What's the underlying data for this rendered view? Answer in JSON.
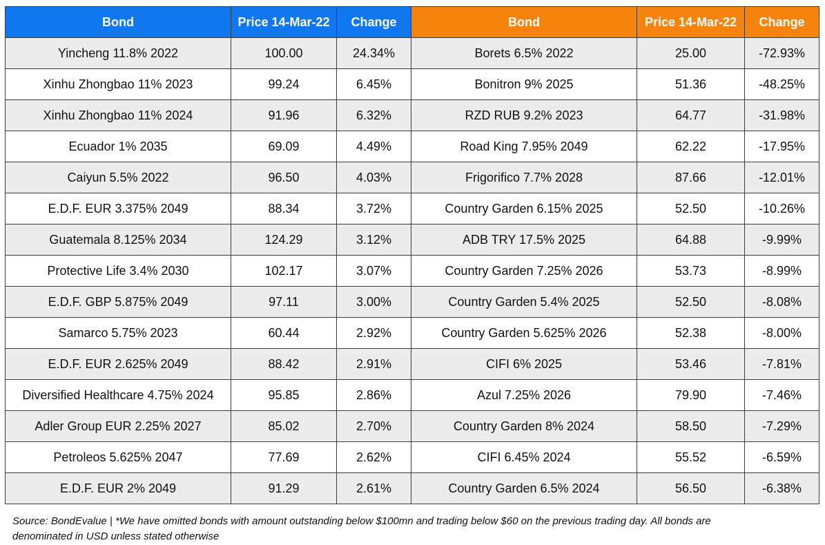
{
  "table": {
    "headers": {
      "left_bond": "Bond",
      "left_price": "Price 14-Mar-22",
      "left_change": "Change",
      "right_bond": "Bond",
      "right_price": "Price 14-Mar-22",
      "right_change": "Change"
    },
    "header_colors": {
      "left": "#1177ee",
      "right": "#f7830f"
    },
    "rows": [
      {
        "left_bond": "Yincheng 11.8% 2022",
        "left_price": "100.00",
        "left_change": "24.34%",
        "right_bond": "Borets 6.5% 2022",
        "right_price": "25.00",
        "right_change": "-72.93%"
      },
      {
        "left_bond": "Xinhu Zhongbao 11% 2023",
        "left_price": "99.24",
        "left_change": "6.45%",
        "right_bond": "Bonitron 9% 2025",
        "right_price": "51.36",
        "right_change": "-48.25%"
      },
      {
        "left_bond": "Xinhu Zhongbao 11% 2024",
        "left_price": "91.96",
        "left_change": "6.32%",
        "right_bond": "RZD RUB 9.2% 2023",
        "right_price": "64.77",
        "right_change": "-31.98%"
      },
      {
        "left_bond": "Ecuador 1% 2035",
        "left_price": "69.09",
        "left_change": "4.49%",
        "right_bond": "Road King 7.95% 2049",
        "right_price": "62.22",
        "right_change": "-17.95%"
      },
      {
        "left_bond": "Caiyun 5.5% 2022",
        "left_price": "96.50",
        "left_change": "4.03%",
        "right_bond": "Frigorifico 7.7% 2028",
        "right_price": "87.66",
        "right_change": "-12.01%"
      },
      {
        "left_bond": "E.D.F. EUR 3.375% 2049",
        "left_price": "88.34",
        "left_change": "3.72%",
        "right_bond": "Country Garden 6.15% 2025",
        "right_price": "52.50",
        "right_change": "-10.26%"
      },
      {
        "left_bond": "Guatemala 8.125% 2034",
        "left_price": "124.29",
        "left_change": "3.12%",
        "right_bond": "ADB TRY 17.5% 2025",
        "right_price": "64.88",
        "right_change": "-9.99%"
      },
      {
        "left_bond": "Protective Life 3.4% 2030",
        "left_price": "102.17",
        "left_change": "3.07%",
        "right_bond": "Country Garden 7.25% 2026",
        "right_price": "53.73",
        "right_change": "-8.99%"
      },
      {
        "left_bond": "E.D.F. GBP 5.875% 2049",
        "left_price": "97.11",
        "left_change": "3.00%",
        "right_bond": "Country Garden 5.4% 2025",
        "right_price": "52.50",
        "right_change": "-8.08%"
      },
      {
        "left_bond": "Samarco 5.75% 2023",
        "left_price": "60.44",
        "left_change": "2.92%",
        "right_bond": "Country Garden 5.625% 2026",
        "right_price": "52.38",
        "right_change": "-8.00%"
      },
      {
        "left_bond": "E.D.F. EUR 2.625% 2049",
        "left_price": "88.42",
        "left_change": "2.91%",
        "right_bond": "CIFI 6% 2025",
        "right_price": "53.46",
        "right_change": "-7.81%"
      },
      {
        "left_bond": "Diversified Healthcare 4.75% 2024",
        "left_price": "95.85",
        "left_change": "2.86%",
        "right_bond": "Azul 7.25% 2026",
        "right_price": "79.90",
        "right_change": "-7.46%"
      },
      {
        "left_bond": "Adler Group EUR 2.25% 2027",
        "left_price": "85.02",
        "left_change": "2.70%",
        "right_bond": "Country Garden 8% 2024",
        "right_price": "58.50",
        "right_change": "-7.29%"
      },
      {
        "left_bond": "Petroleos 5.625% 2047",
        "left_price": "77.69",
        "left_change": "2.62%",
        "right_bond": "CIFI 6.45% 2024",
        "right_price": "55.52",
        "right_change": "-6.59%"
      },
      {
        "left_bond": "E.D.F. EUR 2% 2049",
        "left_price": "91.29",
        "left_change": "2.61%",
        "right_bond": "Country Garden 6.5% 2024",
        "right_price": "56.50",
        "right_change": "-6.38%"
      }
    ]
  },
  "footnote": {
    "line1": "Source: BondEvalue | *We have omitted bonds with amount outstanding below $100mn and trading below $60 on the previous trading day. All bonds are",
    "line2": "denominated in USD unless stated otherwise"
  }
}
